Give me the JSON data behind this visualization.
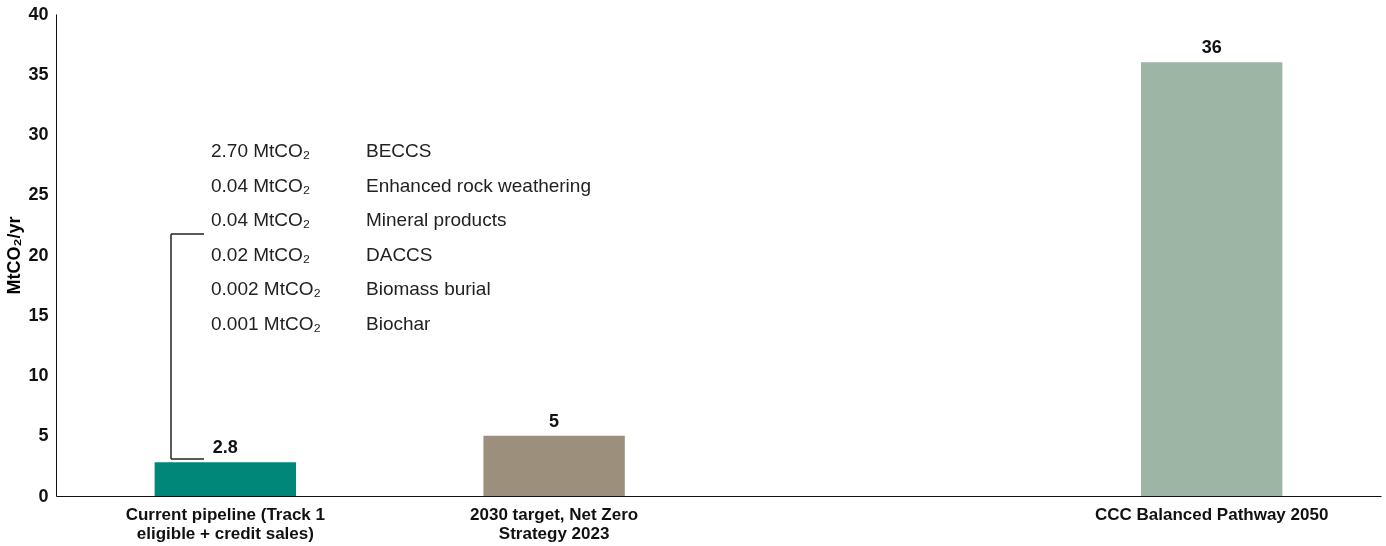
{
  "chart_data": {
    "type": "bar",
    "ylabel": "MtCO₂/yr",
    "categories": [
      "Current pipeline (Track 1 eligible + credit sales)",
      "2030 target, Net Zero Strategy 2023",
      null,
      "CCC Balanced Pathway 2050"
    ],
    "values": [
      2.8,
      5,
      null,
      36
    ],
    "colors": [
      "#00877a",
      "#9c8f7b",
      "#9cb5a5",
      "#9cb5a5"
    ],
    "ylim": [
      0,
      40
    ],
    "yticks": [
      0,
      5,
      10,
      15,
      20,
      25,
      30,
      35,
      40
    ],
    "grid": false,
    "data_labels": true,
    "annotations": [
      "2.70 MtCO₂",
      "BECCS",
      "0.04 MtCO₂",
      "Enhanced rock weathering",
      "0.04 MtCO₂",
      "Mineral products",
      "0.02 MtCO₂",
      "DACCS",
      "0.002 MtCO₂",
      "Biomass burial",
      "0.001 MtCO₂",
      "Biochar"
    ]
  }
}
